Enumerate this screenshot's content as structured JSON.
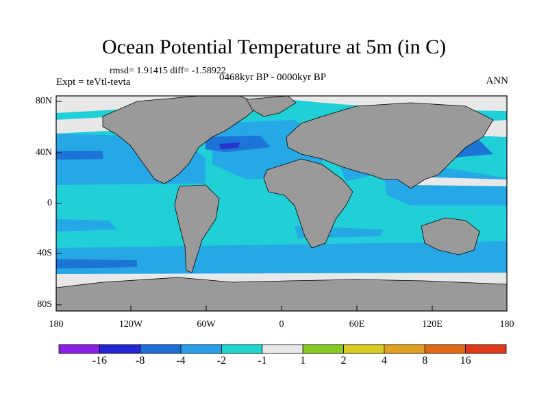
{
  "title": "Ocean Potential Temperature at 5m (in C)",
  "stats": "rmsd= 1.91415 diff= -1.58922",
  "experiment": "Expt = teVtl-tevta",
  "period": "0468kyr BP - 0000kyr BP",
  "season": "ANN",
  "lat_labels": [
    "80N",
    "40N",
    "0",
    "40S",
    "80S"
  ],
  "lon_labels": [
    "180",
    "120W",
    "60W",
    "0",
    "60E",
    "120E",
    "180"
  ],
  "colorbar": {
    "labels": [
      "-16",
      "-8",
      "-4",
      "-2",
      "-1",
      "1",
      "2",
      "4",
      "8",
      "16"
    ],
    "colors": [
      "#8a1fe6",
      "#2626d6",
      "#1f6fd8",
      "#2aa0e8",
      "#1fd6d0",
      "#e8e8e8",
      "#88cc22",
      "#d8cc22",
      "#e0a020",
      "#e06a18",
      "#e03a18"
    ]
  },
  "colors": {
    "land": "#9a9a9a",
    "ocean_main": "#20d0d6",
    "ocean_cool": "#27a8e6",
    "ocean_cold": "#1c74d6",
    "ocean_coldest": "#2436cc",
    "ice": "#e8e8e8"
  }
}
